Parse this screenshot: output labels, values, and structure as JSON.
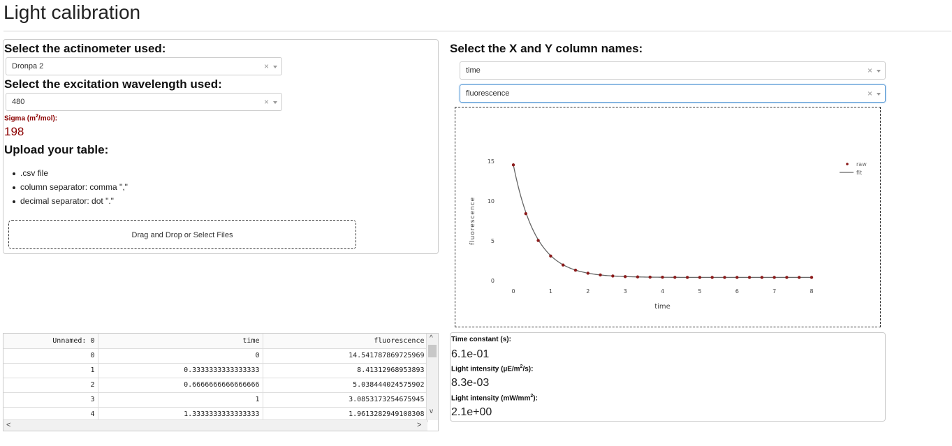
{
  "page": {
    "title": "Light calibration"
  },
  "actinometer": {
    "label": "Select the actinometer used:",
    "value": "Dronpa 2",
    "clear": "×"
  },
  "wavelength": {
    "label": "Select the excitation wavelength used:",
    "value": "480",
    "clear": "×"
  },
  "sigma": {
    "label_prefix": "Sigma (m",
    "label_sup": "2",
    "label_suffix": "/mol):",
    "value": "198"
  },
  "upload": {
    "heading": "Upload your table:",
    "bullets": [
      ".csv file",
      "column separator: comma \",\"",
      "decimal separator: dot \".\""
    ],
    "dropzone_label": "Drag and Drop or Select Files"
  },
  "columns": {
    "heading": "Select the X and Y column names:",
    "x_value": "time",
    "y_value": "fluorescence",
    "clear": "×"
  },
  "chart_data": {
    "type": "scatter",
    "title": "",
    "xlabel": "time",
    "ylabel": "fluorescence",
    "xlim": [
      0,
      8
    ],
    "ylim": [
      0,
      15
    ],
    "xticks": [
      0,
      1,
      2,
      3,
      4,
      5,
      6,
      7,
      8
    ],
    "yticks": [
      0,
      5,
      10,
      15
    ],
    "legend_position": "top-right",
    "series": [
      {
        "name": "raw",
        "mode": "markers",
        "color": "#8b1a1a",
        "x": [
          0,
          0.3333,
          0.6667,
          1.0,
          1.3333,
          1.6667,
          2.0,
          2.3333,
          2.6667,
          3.0,
          3.3333,
          3.6667,
          4.0,
          4.3333,
          4.6667,
          5.0,
          5.3333,
          5.6667,
          6.0,
          6.3333,
          6.6667,
          7.0,
          7.3333,
          7.6667,
          8.0
        ],
        "y": [
          14.54,
          8.41,
          5.04,
          3.09,
          1.96,
          1.31,
          0.93,
          0.71,
          0.58,
          0.5,
          0.46,
          0.43,
          0.42,
          0.41,
          0.4,
          0.4,
          0.4,
          0.4,
          0.4,
          0.4,
          0.4,
          0.4,
          0.4,
          0.4,
          0.4
        ]
      },
      {
        "name": "fit",
        "mode": "line",
        "color": "#666666",
        "amplitude": 14.14,
        "tau": 0.61,
        "offset": 0.4
      }
    ]
  },
  "results": {
    "time_constant": {
      "label": "Time constant (s):",
      "value": "6.1e-01"
    },
    "light_intensity_ue": {
      "label_prefix": "Light intensity (µE/m",
      "label_sup": "2",
      "label_suffix": "/s):",
      "value": "8.3e-03"
    },
    "light_intensity_mw": {
      "label_prefix": "Light intensity (mW/mm",
      "label_sup": "2",
      "label_suffix": "):",
      "value": "2.1e+00"
    }
  },
  "table": {
    "headers": [
      "Unnamed: 0",
      "time",
      "fluorescence"
    ],
    "rows": [
      [
        "0",
        "0",
        "14.541787869725969"
      ],
      [
        "1",
        "0.3333333333333333",
        "8.41312968953893"
      ],
      [
        "2",
        "0.6666666666666666",
        "5.038444024575902"
      ],
      [
        "3",
        "1",
        "3.0853173254675945"
      ],
      [
        "4",
        "1.3333333333333333",
        "1.9613282949108308"
      ]
    ],
    "scroll_up": "^",
    "scroll_down": "v",
    "scroll_left": "<",
    "scroll_right": ">"
  }
}
